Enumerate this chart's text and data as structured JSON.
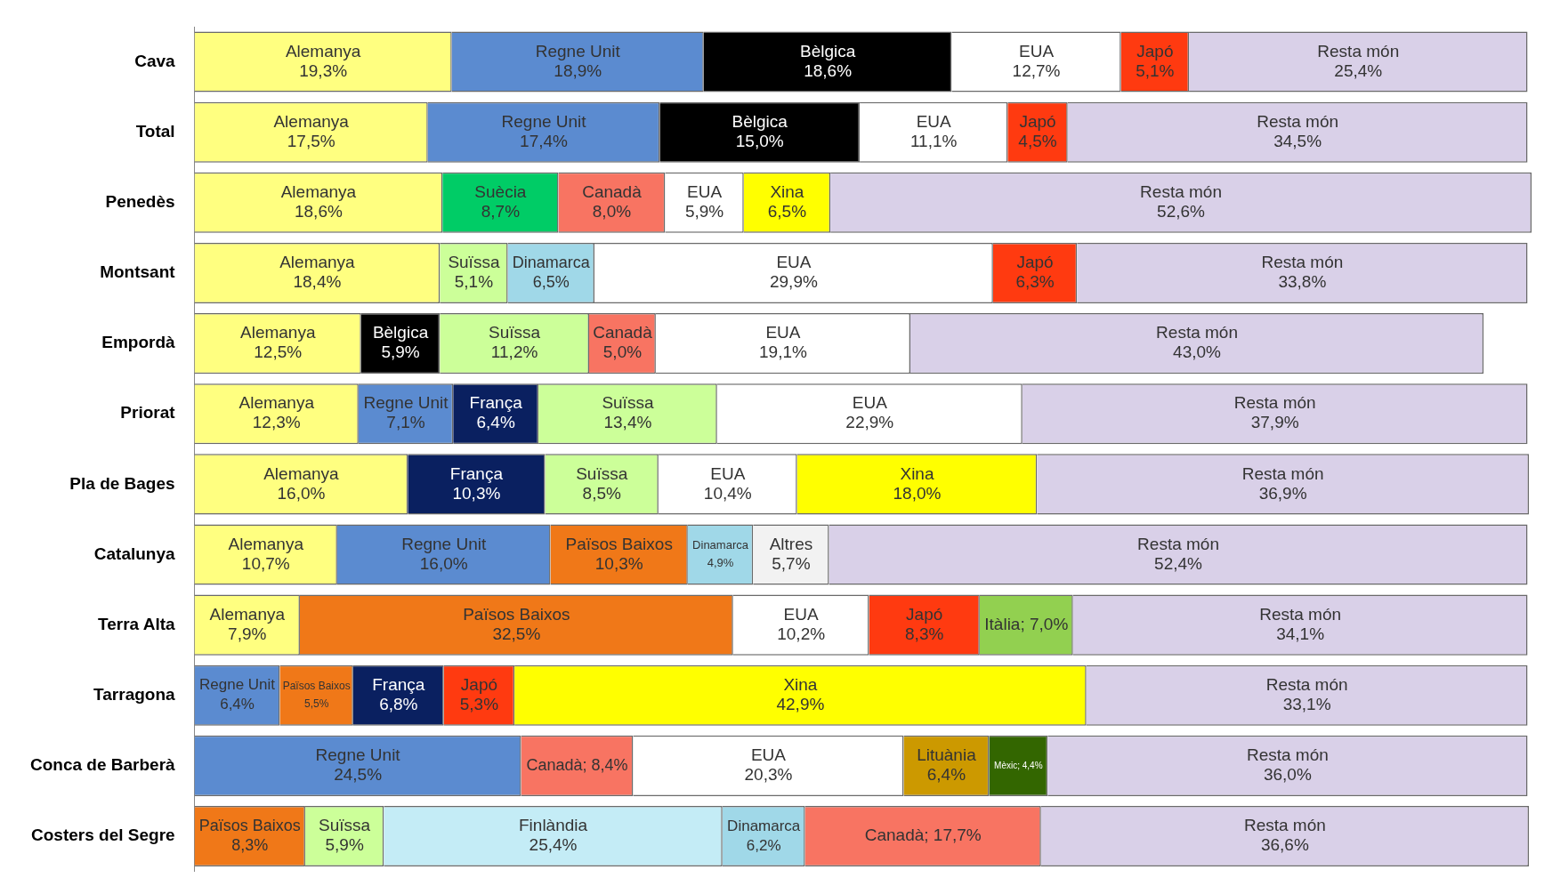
{
  "chart_data": {
    "type": "bar",
    "orientation": "horizontal",
    "stacked": true,
    "legend": false,
    "tick_labels": "y",
    "categories": [
      "Cava",
      "Total",
      "Penedès",
      "Montsant",
      "Empordà",
      "Priorat",
      "Pla de Bages",
      "Catalunya",
      "Terra Alta",
      "Tarragona",
      "Conca de Barberà",
      "Costers del Segre"
    ],
    "series": [
      {
        "values": [
          19.3,
          17.5,
          18.6,
          18.4,
          12.5,
          12.3,
          16.0,
          10.7,
          7.9,
          6.4,
          24.5,
          8.3
        ],
        "colors": [
          "#ffff80",
          "#ffff80",
          "#ffff80",
          "#ffff80",
          "#ffff80",
          "#ffff80",
          "#ffff80",
          "#ffff80",
          "#ffff80",
          "#5b8bd0",
          "#5b8bd0",
          "#f07818"
        ],
        "value_labels": [
          "Alemanya\n19,3%",
          "Alemanya\n17,5%",
          "Alemanya\n18,6%",
          "Alemanya\n18,4%",
          "Alemanya\n12,5%",
          "Alemanya\n12,3%",
          "Alemanya\n16,0%",
          "Alemanya\n10,7%",
          "Alemanya\n7,9%",
          "Regne Unit\n6,4%",
          "Regne Unit\n24,5%",
          "Països Baixos\n8,3%"
        ]
      },
      {
        "values": [
          18.9,
          17.4,
          8.7,
          5.1,
          5.9,
          7.1,
          10.3,
          16.0,
          32.5,
          5.5,
          8.4,
          5.9
        ],
        "colors": [
          "#5b8bd0",
          "#5b8bd0",
          "#00cc66",
          "#ccff99",
          "#000000",
          "#5b8bd0",
          "#0a2060",
          "#5b8bd0",
          "#f07818",
          "#f07818",
          "#f87462",
          "#ccff99"
        ],
        "value_labels": [
          "Regne Unit\n18,9%",
          "Regne Unit\n17,4%",
          "Suècia\n8,7%",
          "Suïssa\n5,1%",
          "Bèlgica\n5,9%",
          "Regne Unit\n7,1%",
          "França\n10,3%",
          "Regne Unit\n16,0%",
          "Països Baixos\n32,5%",
          "Països Baixos\n5,5%",
          "Canadà; 8,4%",
          "Suïssa\n5,9%"
        ]
      },
      {
        "values": [
          18.6,
          15.0,
          8.0,
          6.5,
          11.2,
          6.4,
          8.5,
          10.3,
          10.2,
          6.8,
          20.3,
          25.4
        ],
        "colors": [
          "#000000",
          "#000000",
          "#f87462",
          "#a0d8e8",
          "#ccff99",
          "#0a2060",
          "#ccff99",
          "#f07818",
          "#ffffff",
          "#0a2060",
          "#ffffff",
          "#c4ecf6"
        ],
        "value_labels": [
          "Bèlgica\n18,6%",
          "Bèlgica\n15,0%",
          "Canadà\n8,0%",
          "Dinamarca\n6,5%",
          "Suïssa\n11,2%",
          "França\n6,4%",
          "Suïssa\n8,5%",
          "Països Baixos\n10,3%",
          "EUA\n10,2%",
          "França\n6,8%",
          "EUA\n20,3%",
          "Finlàndia\n25,4%"
        ]
      },
      {
        "values": [
          12.7,
          11.1,
          5.9,
          29.9,
          5.0,
          13.4,
          10.4,
          4.9,
          8.3,
          5.3,
          6.4,
          6.2
        ],
        "colors": [
          "#ffffff",
          "#ffffff",
          "#ffffff",
          "#ffffff",
          "#f87462",
          "#ccff99",
          "#ffffff",
          "#a0d8e8",
          "#ff3a10",
          "#ff3a10",
          "#cc9900",
          "#a0d8e8"
        ],
        "value_labels": [
          "EUA\n12,7%",
          "EUA\n11,1%",
          "EUA\n5,9%",
          "EUA\n29,9%",
          "Canadà\n5,0%",
          "Suïssa\n13,4%",
          "EUA\n10,4%",
          "Dinamarca\n4,9%",
          "Japó\n8,3%",
          "Japó\n5,3%",
          "Lituània\n6,4%",
          "Dinamarca\n6,2%"
        ]
      },
      {
        "values": [
          5.1,
          4.5,
          6.5,
          6.3,
          19.1,
          22.9,
          18.0,
          5.7,
          7.0,
          42.9,
          4.4,
          17.7
        ],
        "colors": [
          "#ff3a10",
          "#ff3a10",
          "#ffff00",
          "#ff3a10",
          "#ffffff",
          "#ffffff",
          "#ffff00",
          "#f2f2f2",
          "#92d050",
          "#ffff00",
          "#336600",
          "#f87462"
        ],
        "value_labels": [
          "Japó\n5,1%",
          "Japó\n4,5%",
          "Xina\n6,5%",
          "Japó\n6,3%",
          "EUA\n19,1%",
          "EUA\n22,9%",
          "Xina\n18,0%",
          "Altres\n5,7%",
          "Itàlia; 7,0%",
          "Xina\n42,9%",
          "Mèxic; 4,4%",
          "Canadà; 17,7%"
        ]
      },
      {
        "values": [
          25.4,
          34.5,
          52.6,
          33.8,
          43.0,
          37.9,
          36.9,
          52.4,
          34.1,
          33.1,
          36.0,
          36.6
        ],
        "colors": [
          "#d9d0e8",
          "#d9d0e8",
          "#d9d0e8",
          "#d9d0e8",
          "#d9d0e8",
          "#d9d0e8",
          "#d9d0e8",
          "#d9d0e8",
          "#d9d0e8",
          "#d9d0e8",
          "#d9d0e8",
          "#d9d0e8"
        ],
        "value_labels": [
          "Resta món\n25,4%",
          "Resta món\n34,5%",
          "Resta món\n52,6%",
          "Resta món\n33,8%",
          "Resta món\n43,0%",
          "Resta món\n37,9%",
          "Resta món\n36,9%",
          "Resta món\n52,4%",
          "Resta món\n34,1%",
          "Resta món\n33,1%",
          "Resta món\n36,0%",
          "Resta món\n36,6%"
        ]
      }
    ]
  }
}
